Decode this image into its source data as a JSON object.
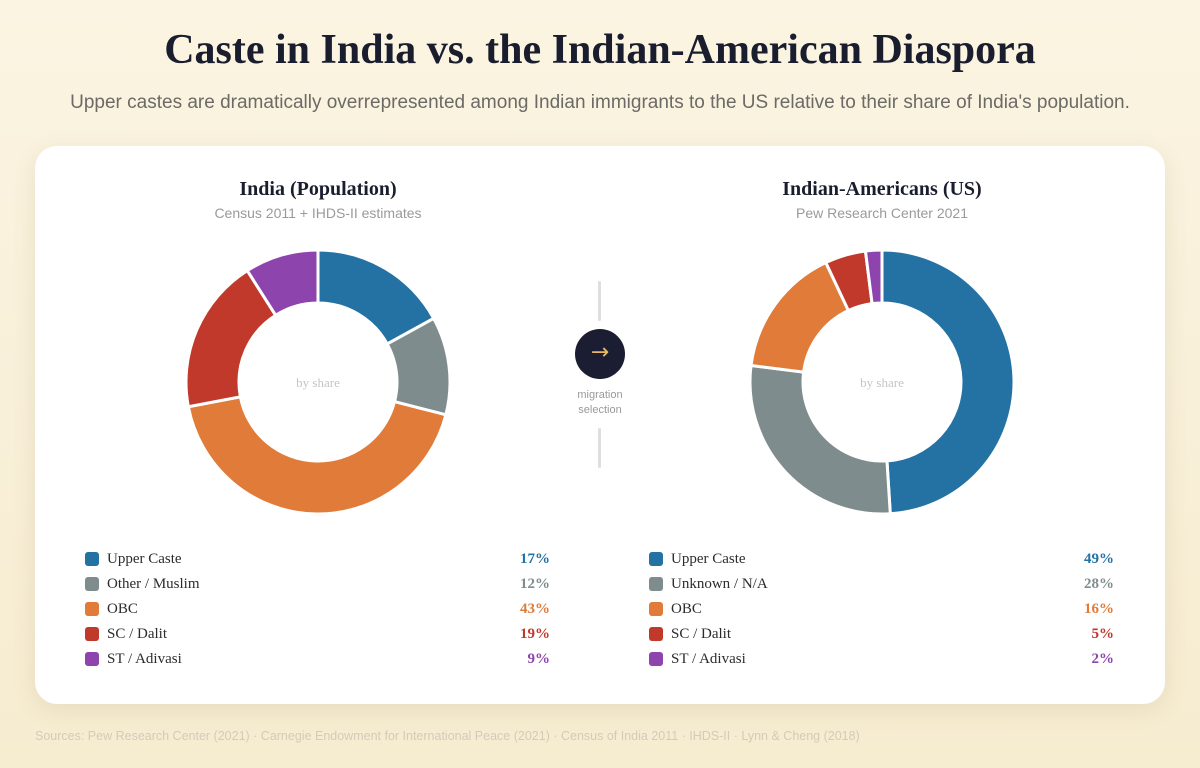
{
  "title": "Caste in India vs. the Indian-American Diaspora",
  "subtitle": "Upper castes are dramatically overrepresented among Indian immigrants to the US relative to their share of India's population.",
  "center_label": "by share",
  "migration": {
    "icon": "right-arrow-icon",
    "glyph": "→",
    "line1": "migration",
    "line2": "selection"
  },
  "sources": "Sources: Pew Research Center (2021) · Carnegie Endowment for International Peace (2021) · Census of India 2011 · IHDS-II · Lynn & Cheng (2018)",
  "chart_data": [
    {
      "type": "pie",
      "title": "India (Population)",
      "subtitle": "Census 2011 + IHDS-II estimates",
      "categories": [
        "Upper Caste",
        "Other / Muslim",
        "OBC",
        "SC / Dalit",
        "ST / Adivasi"
      ],
      "values": [
        17,
        12,
        43,
        19,
        9
      ],
      "value_labels": [
        "17%",
        "12%",
        "43%",
        "19%",
        "9%"
      ],
      "colors": [
        "#2471a3",
        "#7f8c8d",
        "#e07b39",
        "#c0392b",
        "#8e44ad"
      ]
    },
    {
      "type": "pie",
      "title": "Indian-Americans (US)",
      "subtitle": "Pew Research Center 2021",
      "categories": [
        "Upper Caste",
        "Unknown / N/A",
        "OBC",
        "SC / Dalit",
        "ST / Adivasi"
      ],
      "values": [
        49,
        28,
        16,
        5,
        2
      ],
      "value_labels": [
        "49%",
        "28%",
        "16%",
        "5%",
        "2%"
      ],
      "colors": [
        "#2471a3",
        "#7f8c8d",
        "#e07b39",
        "#c0392b",
        "#8e44ad"
      ]
    }
  ]
}
